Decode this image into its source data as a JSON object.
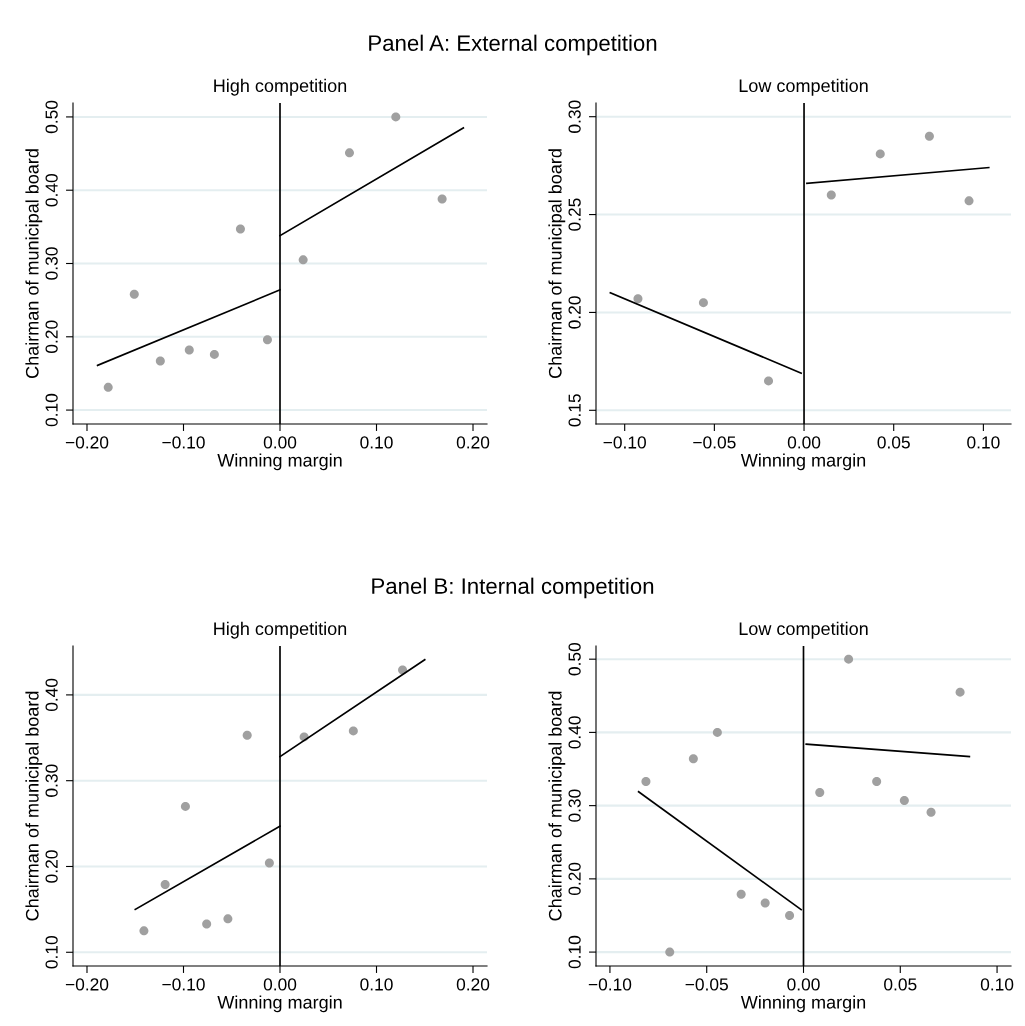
{
  "chart_data": [
    {
      "type": "scatter",
      "title": "High competition",
      "xlabel": "Winning margin",
      "ylabel": "Chairman of municipal board",
      "annotations": [
        "Panel A: External competition"
      ],
      "grid": "y",
      "xlim": [
        -0.2145,
        0.2145
      ],
      "ylim": [
        0.081,
        0.519
      ],
      "xticks": [
        {
          "value": -0.2,
          "label": "−0.20"
        },
        {
          "value": -0.1,
          "label": "−0.10"
        },
        {
          "value": 0,
          "label": "0.00"
        },
        {
          "value": 0.1,
          "label": "0.10"
        },
        {
          "value": 0.2,
          "label": "0.20"
        }
      ],
      "yticks": [
        {
          "value": 0.1,
          "label": "0.10"
        },
        {
          "value": 0.2,
          "label": "0.20"
        },
        {
          "value": 0.3,
          "label": "0.30"
        },
        {
          "value": 0.4,
          "label": "0.40"
        },
        {
          "value": 0.5,
          "label": "0.50"
        }
      ],
      "ref_lines": [
        {
          "axis": "x",
          "value": 0,
          "color": "#000000"
        }
      ],
      "series": [
        {
          "marker": "circle",
          "color": "#a0a0a0",
          "x": [
            -0.178,
            -0.151,
            -0.124,
            -0.094,
            -0.068,
            -0.041,
            -0.013,
            0.024,
            0.072,
            0.12,
            0.168
          ],
          "values": [
            0.131,
            0.258,
            0.167,
            0.182,
            0.176,
            0.347,
            0.196,
            0.305,
            0.451,
            0.5,
            0.388
          ]
        },
        {
          "type": "line",
          "marker": "none",
          "color": "#000000",
          "line_style": "solid",
          "x": [
            -0.189,
            0.0
          ],
          "values": [
            0.161,
            0.264
          ]
        },
        {
          "type": "line",
          "marker": "none",
          "color": "#000000",
          "line_style": "solid",
          "x": [
            0.0,
            0.19
          ],
          "values": [
            0.338,
            0.485
          ]
        }
      ]
    },
    {
      "type": "scatter",
      "title": "Low competition",
      "xlabel": "Winning margin",
      "ylabel": "Chairman of municipal board",
      "grid": "y",
      "xlim": [
        -0.116,
        0.1154
      ],
      "ylim": [
        0.143,
        0.307
      ],
      "xticks": [
        {
          "value": -0.1,
          "label": "−0.10"
        },
        {
          "value": -0.05,
          "label": "−0.05"
        },
        {
          "value": 0,
          "label": "0.00"
        },
        {
          "value": 0.05,
          "label": "0.05"
        },
        {
          "value": 0.1,
          "label": "0.10"
        }
      ],
      "yticks": [
        {
          "value": 0.15,
          "label": "0.15"
        },
        {
          "value": 0.2,
          "label": "0.20"
        },
        {
          "value": 0.25,
          "label": "0.25"
        },
        {
          "value": 0.3,
          "label": "0.30"
        }
      ],
      "ref_lines": [
        {
          "axis": "x",
          "value": 0,
          "color": "#000000"
        }
      ],
      "series": [
        {
          "marker": "circle",
          "color": "#a0a0a0",
          "x": [
            -0.0926,
            -0.0561,
            -0.0198,
            0.0152,
            0.0425,
            0.0699,
            0.092
          ],
          "values": [
            0.207,
            0.205,
            0.165,
            0.26,
            0.281,
            0.29,
            0.257
          ]
        },
        {
          "type": "line",
          "marker": "none",
          "color": "#000000",
          "line_style": "solid",
          "x": [
            -0.108,
            -0.0016
          ],
          "values": [
            0.21,
            0.169
          ]
        },
        {
          "type": "line",
          "marker": "none",
          "color": "#000000",
          "line_style": "solid",
          "x": [
            0.0016,
            0.103
          ],
          "values": [
            0.266,
            0.274
          ]
        }
      ]
    },
    {
      "type": "scatter",
      "title": "High competition",
      "xlabel": "Winning margin",
      "ylabel": "Chairman of municipal board",
      "annotations": [
        "Panel B: Internal competition"
      ],
      "grid": "y",
      "xlim": [
        -0.2145,
        0.2145
      ],
      "ylim": [
        0.084,
        0.457
      ],
      "xticks": [
        {
          "value": -0.2,
          "label": "−0.20"
        },
        {
          "value": -0.1,
          "label": "−0.10"
        },
        {
          "value": 0,
          "label": "0.00"
        },
        {
          "value": 0.1,
          "label": "0.10"
        },
        {
          "value": 0.2,
          "label": "0.20"
        }
      ],
      "yticks": [
        {
          "value": 0.1,
          "label": "0.10"
        },
        {
          "value": 0.2,
          "label": "0.20"
        },
        {
          "value": 0.3,
          "label": "0.30"
        },
        {
          "value": 0.4,
          "label": "0.40"
        }
      ],
      "ref_lines": [
        {
          "axis": "x",
          "value": 0,
          "color": "#000000"
        }
      ],
      "series": [
        {
          "marker": "circle",
          "color": "#a0a0a0",
          "x": [
            -0.141,
            -0.119,
            -0.098,
            -0.076,
            -0.054,
            -0.034,
            -0.011,
            0.025,
            0.076,
            0.127
          ],
          "values": [
            0.125,
            0.179,
            0.27,
            0.133,
            0.139,
            0.353,
            0.204,
            0.351,
            0.358,
            0.429
          ]
        },
        {
          "type": "line",
          "marker": "none",
          "color": "#000000",
          "line_style": "solid",
          "x": [
            -0.15,
            0.0
          ],
          "values": [
            0.15,
            0.247
          ]
        },
        {
          "type": "line",
          "marker": "none",
          "color": "#000000",
          "line_style": "solid",
          "x": [
            0.0,
            0.15
          ],
          "values": [
            0.328,
            0.441
          ]
        }
      ]
    },
    {
      "type": "scatter",
      "title": "Low competition",
      "xlabel": "Winning margin",
      "ylabel": "Chairman of municipal board",
      "grid": "y",
      "xlim": [
        -0.1072,
        0.1072
      ],
      "ylim": [
        0.081,
        0.518
      ],
      "xticks": [
        {
          "value": -0.1,
          "label": "−0.10"
        },
        {
          "value": -0.05,
          "label": "−0.05"
        },
        {
          "value": 0,
          "label": "0.00"
        },
        {
          "value": 0.05,
          "label": "0.05"
        },
        {
          "value": 0.1,
          "label": "0.10"
        }
      ],
      "yticks": [
        {
          "value": 0.1,
          "label": "0.10"
        },
        {
          "value": 0.2,
          "label": "0.20"
        },
        {
          "value": 0.3,
          "label": "0.30"
        },
        {
          "value": 0.4,
          "label": "0.40"
        },
        {
          "value": 0.5,
          "label": "0.50"
        }
      ],
      "ref_lines": [
        {
          "axis": "x",
          "value": 0,
          "color": "#000000"
        }
      ],
      "series": [
        {
          "marker": "circle",
          "color": "#a0a0a0",
          "x": [
            -0.0814,
            -0.0691,
            -0.0569,
            -0.0445,
            -0.0322,
            -0.0198,
            -0.0072,
            0.0084,
            0.0233,
            0.0378,
            0.0521,
            0.0659,
            0.0809
          ],
          "values": [
            0.333,
            0.1,
            0.364,
            0.4,
            0.179,
            0.167,
            0.15,
            0.318,
            0.5,
            0.333,
            0.307,
            0.291,
            0.455
          ]
        },
        {
          "type": "line",
          "marker": "none",
          "color": "#000000",
          "line_style": "solid",
          "x": [
            -0.0852,
            -0.0012
          ],
          "values": [
            0.319,
            0.158
          ]
        },
        {
          "type": "line",
          "marker": "none",
          "color": "#000000",
          "line_style": "solid",
          "x": [
            0.0014,
            0.0857
          ],
          "values": [
            0.384,
            0.367
          ]
        }
      ]
    }
  ]
}
